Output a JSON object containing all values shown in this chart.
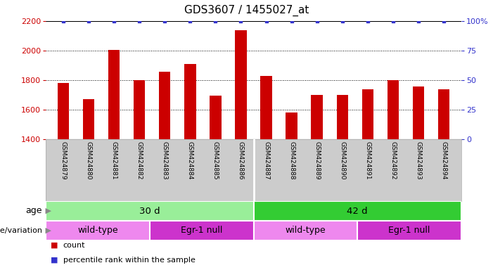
{
  "title": "GDS3607 / 1455027_at",
  "samples": [
    "GSM424879",
    "GSM424880",
    "GSM424881",
    "GSM424882",
    "GSM424883",
    "GSM424884",
    "GSM424885",
    "GSM424886",
    "GSM424887",
    "GSM424888",
    "GSM424889",
    "GSM424890",
    "GSM424891",
    "GSM424892",
    "GSM424893",
    "GSM424894"
  ],
  "counts": [
    1780,
    1670,
    2005,
    1800,
    1855,
    1910,
    1695,
    2140,
    1830,
    1580,
    1700,
    1700,
    1740,
    1800,
    1755,
    1740
  ],
  "percentile": [
    100,
    100,
    100,
    100,
    100,
    100,
    100,
    100,
    100,
    100,
    100,
    100,
    100,
    100,
    100,
    100
  ],
  "ylim_left": [
    1400,
    2200
  ],
  "ylim_right": [
    0,
    100
  ],
  "yticks_left": [
    1400,
    1600,
    1800,
    2000,
    2200
  ],
  "yticks_right": [
    0,
    25,
    50,
    75,
    100
  ],
  "bar_color": "#cc0000",
  "dot_color": "#3333cc",
  "age_groups": [
    {
      "label": "30 d",
      "start": 0,
      "end": 8,
      "color": "#99ee99"
    },
    {
      "label": "42 d",
      "start": 8,
      "end": 16,
      "color": "#33cc33"
    }
  ],
  "genotype_groups": [
    {
      "label": "wild-type",
      "start": 0,
      "end": 4,
      "color": "#ee88ee"
    },
    {
      "label": "Egr-1 null",
      "start": 4,
      "end": 8,
      "color": "#cc33cc"
    },
    {
      "label": "wild-type",
      "start": 8,
      "end": 12,
      "color": "#ee88ee"
    },
    {
      "label": "Egr-1 null",
      "start": 12,
      "end": 16,
      "color": "#cc33cc"
    }
  ],
  "legend_count_label": "count",
  "legend_percentile_label": "percentile rank within the sample",
  "age_label": "age",
  "genotype_label": "genotype/variation",
  "background_color": "#ffffff",
  "tick_area_color": "#cccccc",
  "separator_color": "#ffffff"
}
